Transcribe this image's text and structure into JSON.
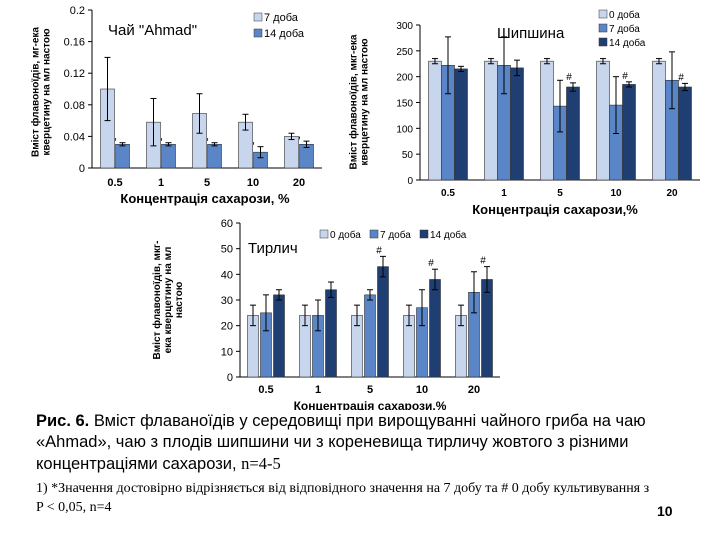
{
  "chart_data": [
    {
      "type": "bar",
      "title": "Чай \"Ahmad\"",
      "xlabel": "Концентрація сахарози, %",
      "ylabel": [
        "Вміст флавоноїдів, мг-ека",
        "кверцетину на мл настою"
      ],
      "categories": [
        "0.5",
        "1",
        "5",
        "10",
        "20"
      ],
      "ylim": [
        0,
        0.2
      ],
      "yticks": [
        "0",
        "0.04",
        "0.08",
        "0.12",
        "0.16",
        "0.2"
      ],
      "series": [
        {
          "name": "7 доба",
          "values": [
            0.1,
            0.058,
            0.069,
            0.058,
            0.04
          ],
          "errors": [
            0.04,
            0.03,
            0.025,
            0.01,
            0.004
          ],
          "color": "#c7d6ec"
        },
        {
          "name": "14 доба",
          "values": [
            0.03,
            0.03,
            0.03,
            0.02,
            0.03
          ],
          "errors": [
            0.002,
            0.002,
            0.002,
            0.007,
            0.004
          ],
          "color": "#5a86c8"
        }
      ],
      "marks": [
        ",",
        ",",
        ",",
        ",",
        ","
      ]
    },
    {
      "type": "bar",
      "title": "Шипшина",
      "xlabel": "Концентрація сахарози,%",
      "ylabel": [
        "Вміст флавоноїдів, мкг-ека",
        "кверцетину на мл настою"
      ],
      "categories": [
        "0.5",
        "1",
        "5",
        "10",
        "20"
      ],
      "ylim": [
        0,
        300
      ],
      "yticks": [
        "0",
        "50",
        "100",
        "150",
        "200",
        "250",
        "300"
      ],
      "series": [
        {
          "name": "0 доба",
          "values": [
            230,
            230,
            230,
            230,
            230
          ],
          "errors": [
            5,
            5,
            5,
            5,
            5
          ],
          "color": "#c7d6ec"
        },
        {
          "name": "7 доба",
          "values": [
            222,
            222,
            143,
            145,
            193
          ],
          "errors": [
            55,
            55,
            50,
            55,
            55
          ],
          "color": "#5a86c8"
        },
        {
          "name": "14 доба",
          "values": [
            215,
            217,
            180,
            185,
            180
          ],
          "errors": [
            5,
            15,
            8,
            5,
            7
          ],
          "color": "#1f3f73"
        }
      ],
      "marks": [
        "",
        "",
        "#",
        "#",
        "#"
      ]
    },
    {
      "type": "bar",
      "title": "Тирлич",
      "xlabel": "Концентрація сахарози,%",
      "ylabel": [
        "Вміст флавоноїдів, мкг-",
        "ека кверцетину на мл",
        "настою"
      ],
      "categories": [
        "0.5",
        "1",
        "5",
        "10",
        "20"
      ],
      "ylim": [
        0,
        60
      ],
      "yticks": [
        "0",
        "10",
        "20",
        "30",
        "40",
        "50",
        "60"
      ],
      "series": [
        {
          "name": "0 доба",
          "values": [
            24,
            24,
            24,
            24,
            24
          ],
          "errors": [
            4,
            4,
            4,
            4,
            4
          ],
          "color": "#c7d6ec"
        },
        {
          "name": "7 доба",
          "values": [
            25,
            24,
            32,
            27,
            33
          ],
          "errors": [
            7,
            6,
            2,
            7,
            8
          ],
          "color": "#5a86c8"
        },
        {
          "name": "14 доба",
          "values": [
            32,
            34,
            43,
            38,
            38
          ],
          "errors": [
            2,
            3,
            4,
            4,
            5
          ],
          "color": "#1f3f73"
        }
      ],
      "marks": [
        "",
        "",
        "#",
        "#",
        "#"
      ]
    }
  ],
  "caption": {
    "label": "Рис. 6.",
    "text": " Вміст флаваноїдів у середовищі при вирощуванні чайного гриба на чаю «Ahmad», чаю з плодів шипшини чи з кореневища тирличу жовтого з різними концентраціями сахарози, ",
    "n": "n=4-5"
  },
  "footnote": "1) *Значення достовірно відрізняється від відповідного значення на 7 добу та # 0 добу культивування з P < 0,05, n=4",
  "page_number": "10"
}
